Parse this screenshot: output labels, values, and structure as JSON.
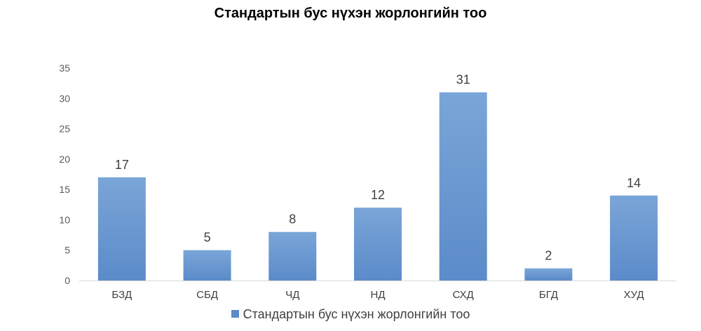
{
  "chart_data": {
    "type": "bar",
    "title": "Стандартын бус нүхэн жорлонгийн тоо",
    "categories": [
      "БЗД",
      "СБД",
      "ЧД",
      "НД",
      "СХД",
      "БГД",
      "ХУД"
    ],
    "series": [
      {
        "name": "Стандартын бус нүхэн жорлонгийн тоо",
        "values": [
          17,
          5,
          8,
          12,
          31,
          2,
          14
        ]
      }
    ],
    "ylim": [
      0,
      35
    ],
    "yticks": [
      0,
      5,
      10,
      15,
      20,
      25,
      30,
      35
    ],
    "data_labels": true,
    "grid": false,
    "legend_position": "bottom",
    "colors": {
      "bar_top": "#7aa5d8",
      "bar_bottom": "#5b8bc9",
      "axis": "#d9d9d9"
    }
  }
}
